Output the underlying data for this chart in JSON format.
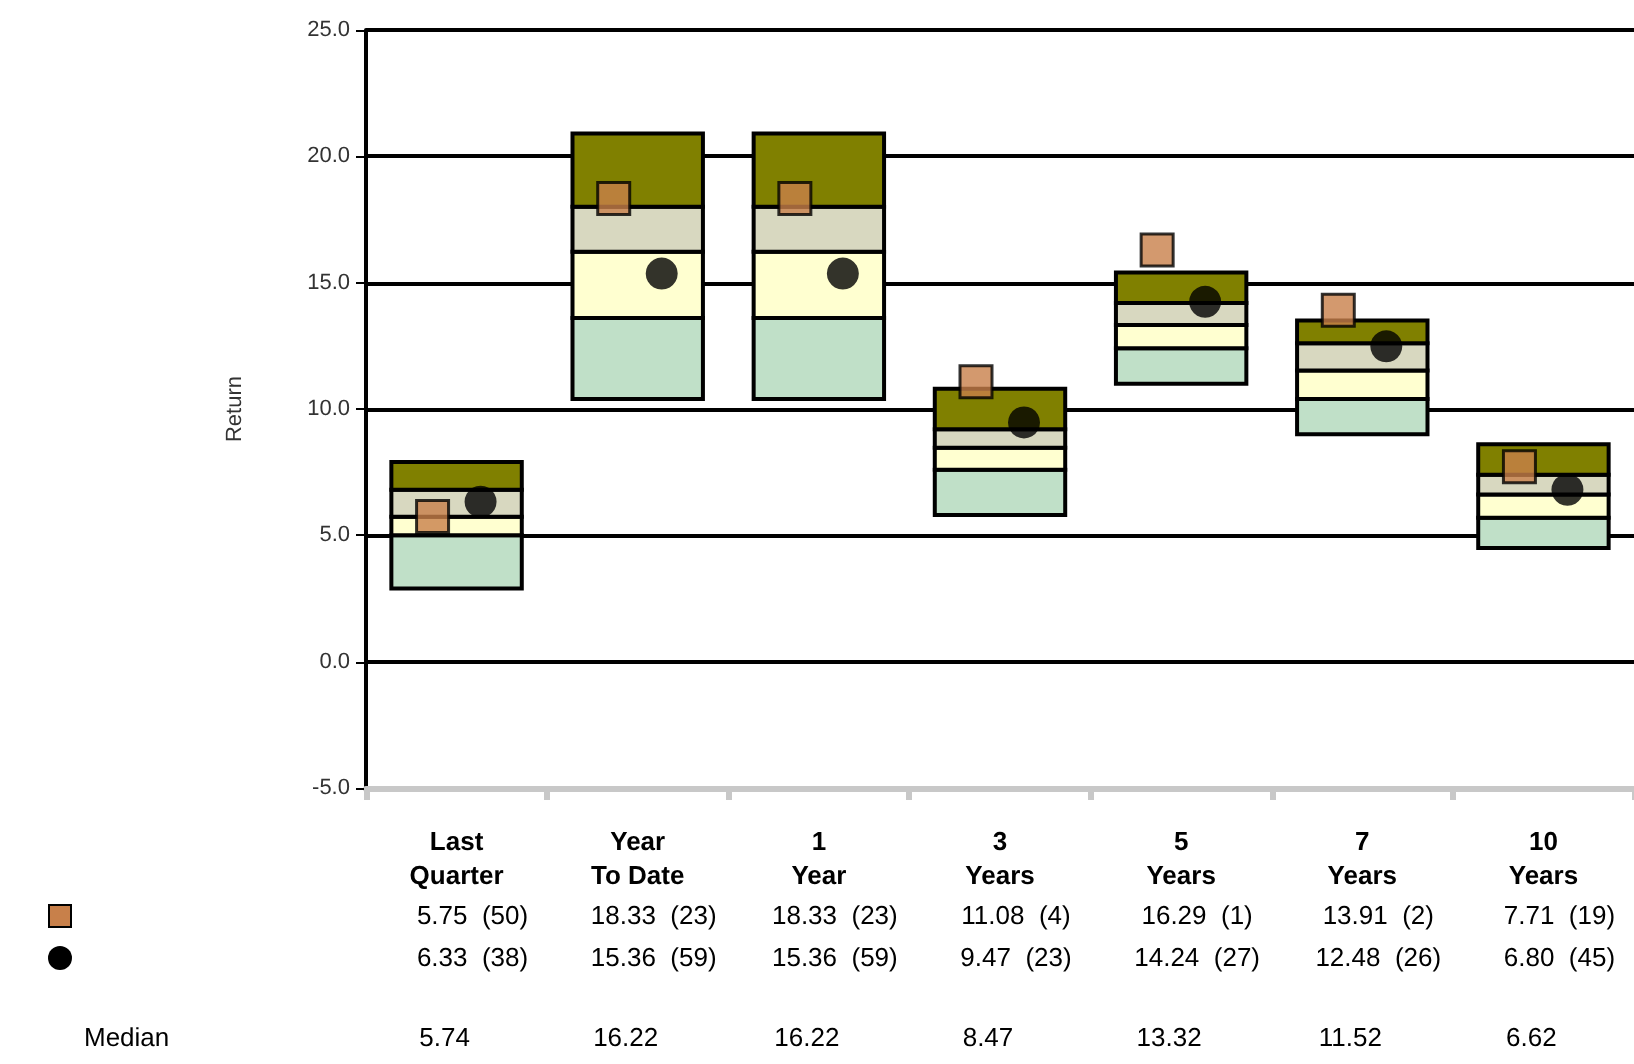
{
  "chart_data": {
    "type": "bar",
    "stacked": true,
    "categories": [
      "Last\nQuarter",
      "Year\nTo Date",
      "1\nYear",
      "3\nYears",
      "5\nYears",
      "7\nYears",
      "10\nYears"
    ],
    "series": [
      {
        "color": "#c0e0c8",
        "base": [
          2.9,
          10.4,
          10.4,
          5.8,
          11.0,
          9.0,
          4.5
        ],
        "values": [
          2.1,
          3.2,
          3.2,
          1.8,
          1.4,
          1.4,
          1.2
        ]
      },
      {
        "color": "#ffffd0",
        "values": [
          0.74,
          2.62,
          2.62,
          0.87,
          0.92,
          1.12,
          0.92
        ]
      },
      {
        "color": "#d8d8c0",
        "values": [
          1.06,
          1.78,
          1.78,
          0.73,
          0.88,
          1.08,
          0.78
        ]
      },
      {
        "color": "#808000",
        "values": [
          1.1,
          2.9,
          2.9,
          1.6,
          1.2,
          0.9,
          1.2
        ]
      },
      {
        "type": "scatter",
        "marker": "square",
        "color": "#c8804a",
        "x": [
          "Last\nQuarter",
          "Year\nTo Date",
          "1\nYear",
          "3\nYears",
          "5\nYears",
          "7\nYears",
          "10\nYears"
        ],
        "values": [
          5.75,
          18.33,
          18.33,
          11.08,
          16.29,
          13.91,
          7.71
        ],
        "value_labels": [
          "5.75  (50)",
          "18.33  (23)",
          "18.33  (23)",
          "11.08  (4)",
          "16.29  (1)",
          "13.91  (2)",
          "7.71  (19)"
        ]
      },
      {
        "type": "scatter",
        "marker": "circle",
        "color": "#000000",
        "x": [
          "Last\nQuarter",
          "Year\nTo Date",
          "1\nYear",
          "3\nYears",
          "5\nYears",
          "7\nYears",
          "10\nYears"
        ],
        "values": [
          6.33,
          15.36,
          15.36,
          9.47,
          14.24,
          12.48,
          6.8
        ],
        "value_labels": [
          "6.33  (38)",
          "15.36  (59)",
          "15.36  (59)",
          "9.47  (23)",
          "14.24  (27)",
          "12.48  (26)",
          "6.80  (45)"
        ]
      }
    ],
    "ylabel": "Return",
    "ylim": [
      -5,
      25
    ],
    "yticks": [
      {
        "value": -5,
        "label": "-5.0"
      },
      {
        "value": 0,
        "label": "0.0"
      },
      {
        "value": 5,
        "label": "5.0"
      },
      {
        "value": 10,
        "label": "10.0"
      },
      {
        "value": 15,
        "label": "15.0"
      },
      {
        "value": 20,
        "label": "20.0"
      },
      {
        "value": 25,
        "label": "25.0"
      }
    ],
    "grid": "y",
    "annotations": [
      "Median",
      "5.74",
      "16.22",
      "16.22",
      "8.47",
      "13.32",
      "11.52",
      "6.62"
    ]
  }
}
